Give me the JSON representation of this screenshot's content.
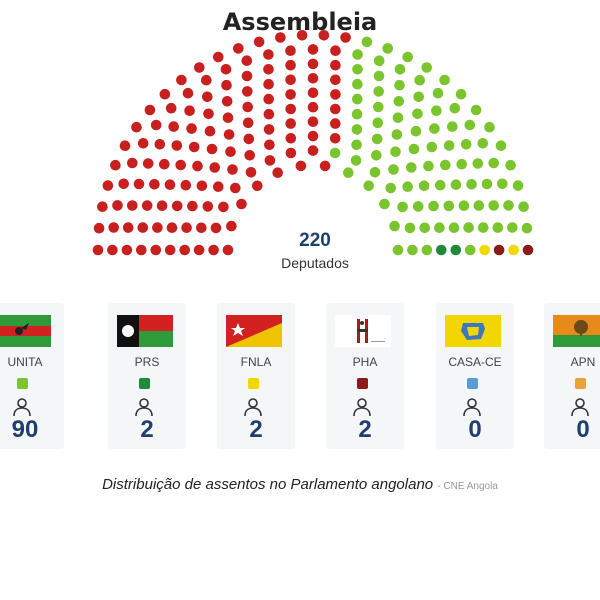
{
  "title": "Assembleia",
  "colors": {
    "unita": "#7ac52e",
    "mpla": "#c81f1f",
    "prs": "#1f8a3c",
    "fnla": "#f0d800",
    "pha": "#8b1a1a",
    "casa_ce": "#5b9bd5",
    "apn": "#e8a23a",
    "seats_text": "#1f3f6e"
  },
  "chart_data": {
    "type": "parliament",
    "total": 220,
    "total_label": "Deputados",
    "series": [
      {
        "name": "",
        "seats": 124,
        "color": "#c81f1f"
      },
      {
        "name": "UNITA",
        "seats": 90,
        "color": "#7ac52e"
      },
      {
        "name": "PRS",
        "seats": 2,
        "color": "#1f8a3c"
      },
      {
        "name": "FNLA",
        "seats": 2,
        "color": "#f0d800"
      },
      {
        "name": "PHA",
        "seats": 2,
        "color": "#8b1a1a"
      }
    ]
  },
  "parties": [
    {
      "name": "UNITA",
      "seats": "90",
      "color": "#7ac52e",
      "flag": "unita-flag"
    },
    {
      "name": "PRS",
      "seats": "2",
      "color": "#1f8a3c",
      "flag": "prs-flag"
    },
    {
      "name": "FNLA",
      "seats": "2",
      "color": "#f0d800",
      "flag": "fnla-flag"
    },
    {
      "name": "PHA",
      "seats": "2",
      "color": "#8b1a1a",
      "flag": "pha-flag"
    },
    {
      "name": "CASA-CE",
      "seats": "0",
      "color": "#5b9bd5",
      "flag": "casa-ce-flag"
    },
    {
      "name": "APN",
      "seats": "0",
      "color": "#e8a23a",
      "flag": "apn-flag"
    }
  ],
  "caption": {
    "text": "Distribuição de assentos no Parlamento angolano",
    "source": "- CNE Angola"
  }
}
